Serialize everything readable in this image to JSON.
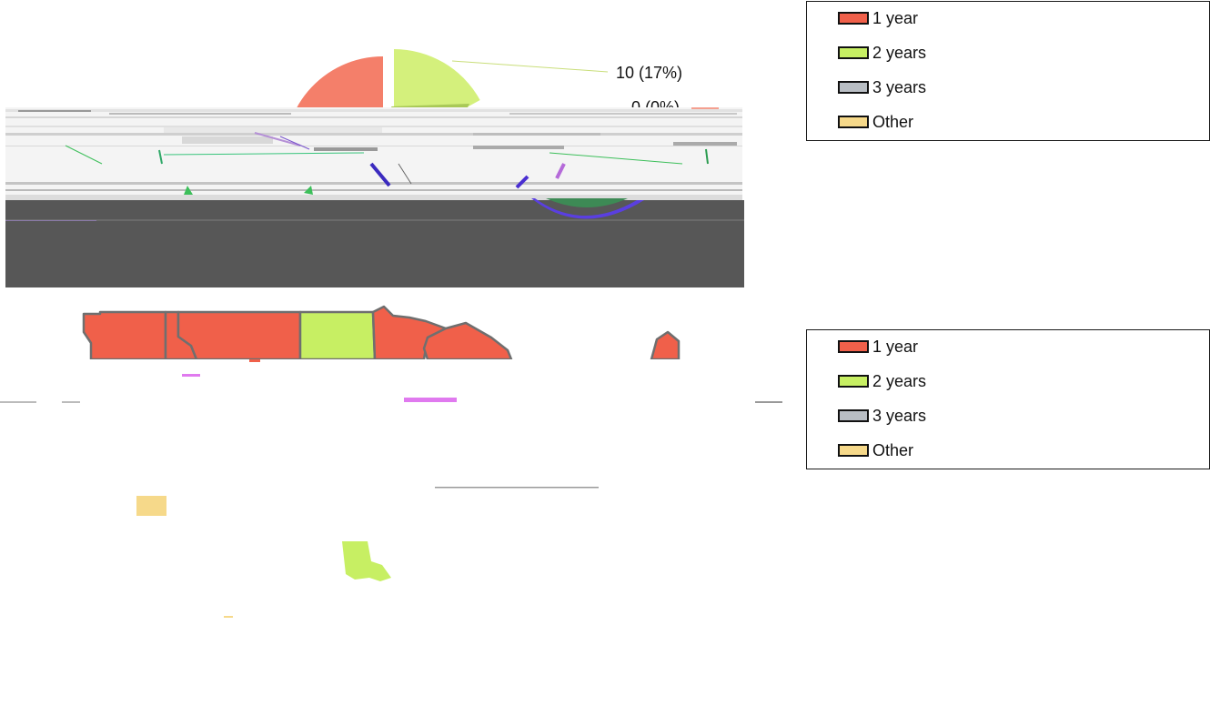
{
  "legend_top": {
    "items": [
      {
        "label": "1 year",
        "color": "#f0604a"
      },
      {
        "label": "2 years",
        "color": "#c7ef63"
      },
      {
        "label": "3 years",
        "color": "#b9bec4"
      },
      {
        "label": "Other",
        "color": "#f6d98a"
      }
    ]
  },
  "legend_bottom": {
    "items": [
      {
        "label": "1 year",
        "color": "#f0604a"
      },
      {
        "label": "2 years",
        "color": "#c7ef63"
      },
      {
        "label": "3 years",
        "color": "#b9bec4"
      },
      {
        "label": "Other",
        "color": "#f6d98a"
      }
    ]
  },
  "chart_data": [
    {
      "type": "pie",
      "series": [
        {
          "name": "2 years",
          "value": 10,
          "percent": 17,
          "data_label": "10 (17%)",
          "color": "#d4f07c"
        },
        {
          "name": "3 years",
          "value": 0,
          "percent": 0,
          "data_label": "0 (0%)",
          "color": "#b9bec4"
        },
        {
          "name": "1 year",
          "color": "#f47f6a"
        }
      ]
    },
    {
      "type": "map",
      "region_colors": {
        "1 year": "#f0604a",
        "2 years": "#c7ef63",
        "Other": "#f6d98a"
      }
    }
  ]
}
